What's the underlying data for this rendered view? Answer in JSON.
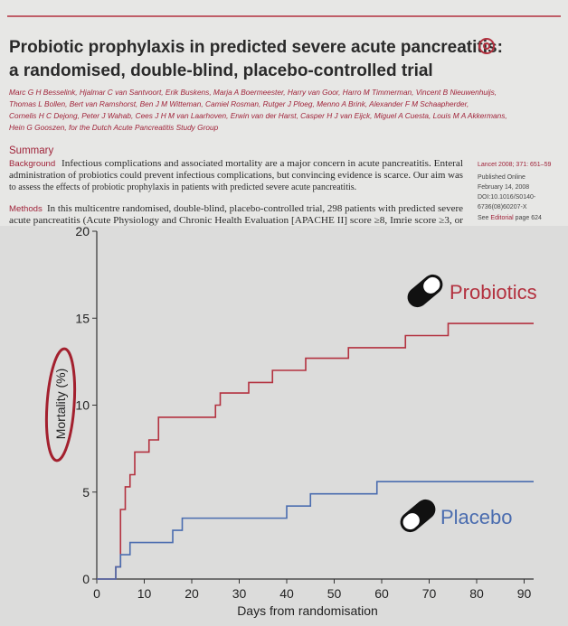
{
  "paper": {
    "title_lines": [
      "Probiotic prophylaxis in predicted severe acute pancreatitis:",
      "a randomised, double-blind, placebo-controlled trial"
    ],
    "author_lines": [
      "Marc G H Besselink, Hjalmar C van Santvoort, Erik Buskens, Marja A Boermeester, Harry van Goor, Harro M Timmerman, Vincent B Nieuwenhuijs,",
      "Thomas L Bollen, Bert van Ramshorst, Ben J M Witteman, Camiel Rosman, Rutger J Ploeg, Menno A Brink, Alexander F M Schaapherder,",
      "Cornelis H C Dejong, Peter J Wahab, Cees J H M van Laarhoven, Erwin van der Harst, Casper H J van Eijck, Miguel A Cuesta, Louis M A Akkermans,",
      "Hein G Gooszen, for the Dutch Acute Pancreatitis Study Group"
    ],
    "summary_heading": "Summary",
    "background_label": "Background",
    "background_lines": [
      "Infectious complications and associated mortality are a major concern in acute pancreatitis. Enteral",
      "administration of probiotics could prevent infectious complications, but convincing evidence is scarce. Our aim was",
      "to assess the effects of probiotic prophylaxis in patients with predicted severe acute pancreatitis."
    ],
    "methods_label": "Methods",
    "methods_lines": [
      "In this multicentre randomised, double-blind, placebo-controlled trial, 298 patients with predicted severe",
      "acute pancreatitis (Acute Physiology and Chronic Health Evaluation [APACHE II] score ≥8, Imrie score ≥3, or"
    ],
    "side_citation": "Lancet 2008; 371: 651–59",
    "side_lines": [
      "Published Online",
      "February 14, 2008",
      "DOI:10.1016/S0140-",
      "6736(08)60207-X"
    ],
    "side_see": "See",
    "side_editorial": "Editorial",
    "side_page": "page 624"
  },
  "chart_data": {
    "type": "line",
    "step": "after",
    "xlabel": "Days from randomisation",
    "ylabel": "Mortality (%)",
    "xlim": [
      0,
      92
    ],
    "xticks": [
      0,
      10,
      20,
      30,
      40,
      50,
      60,
      70,
      80,
      90
    ],
    "ylim": [
      0,
      20
    ],
    "yticks": [
      0,
      5,
      10,
      15,
      20
    ],
    "grid": false,
    "series": [
      {
        "name": "Probiotics",
        "color": "#b3313f",
        "x": [
          0,
          4,
          5,
          6,
          7,
          8,
          11,
          13,
          25,
          26,
          32,
          37,
          44,
          53,
          65,
          74,
          92
        ],
        "values": [
          0,
          0.7,
          4,
          5.3,
          6,
          7.3,
          8,
          9.3,
          10,
          10.7,
          11.3,
          12,
          12.7,
          13.3,
          14,
          14.7,
          14.7
        ]
      },
      {
        "name": "Placebo",
        "color": "#4a6caf",
        "x": [
          0,
          4,
          5,
          7,
          16,
          18,
          40,
          45,
          59,
          92
        ],
        "values": [
          0,
          0.7,
          1.4,
          2.1,
          2.8,
          3.5,
          4.2,
          4.9,
          5.6,
          5.6
        ]
      }
    ]
  }
}
